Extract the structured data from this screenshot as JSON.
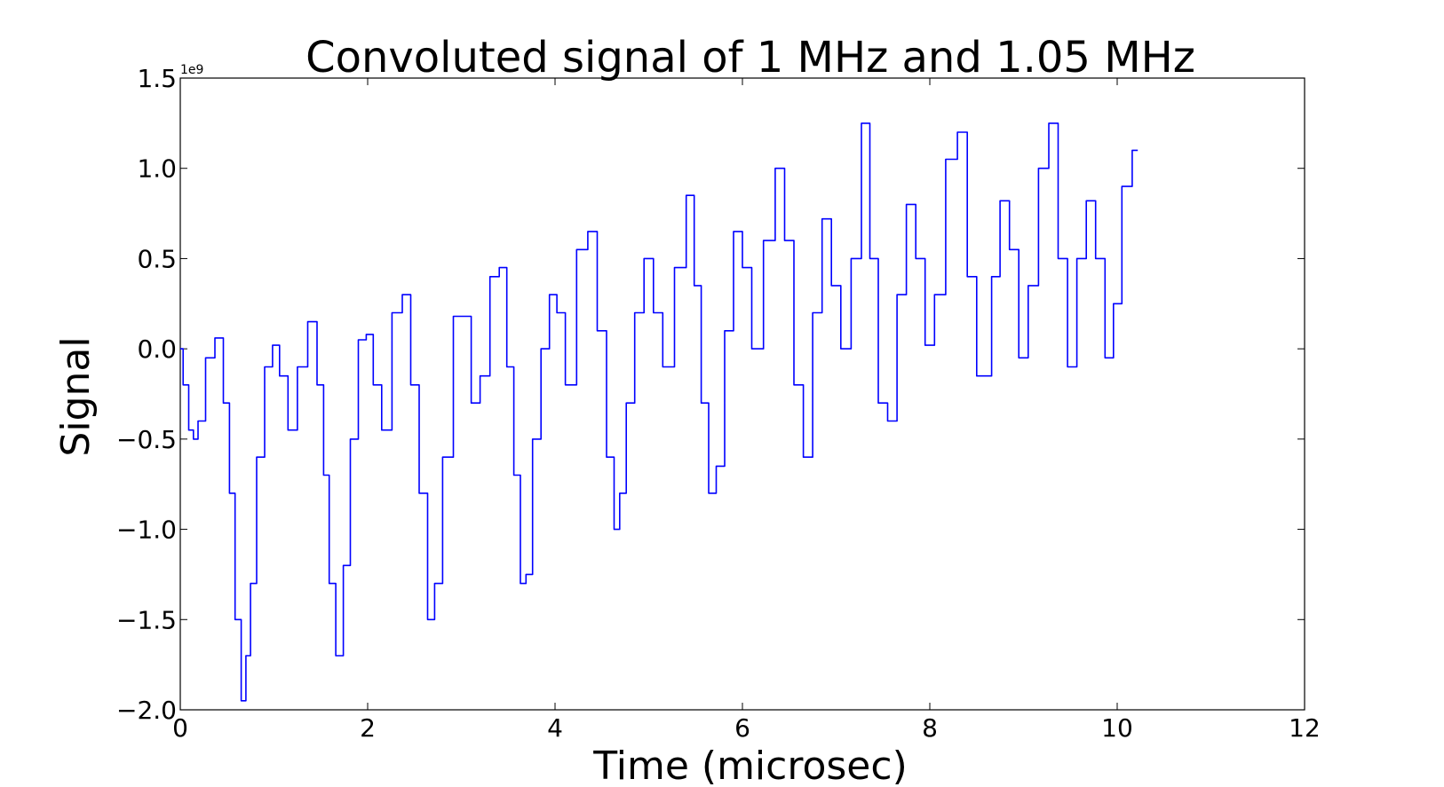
{
  "chart_data": {
    "type": "line",
    "title": "Convoluted signal of 1 MHz and 1.05 MHz",
    "xlabel": "Time (microsec)",
    "ylabel": "Signal",
    "y_offset_label": "1e9",
    "xlim": [
      0,
      12
    ],
    "ylim": [
      -2.0,
      1.5
    ],
    "x_ticks": [
      0,
      2,
      4,
      6,
      8,
      10,
      12
    ],
    "x_tick_labels": [
      "0",
      "2",
      "4",
      "6",
      "8",
      "10",
      "12"
    ],
    "y_ticks": [
      -2.0,
      -1.5,
      -1.0,
      -0.5,
      0.0,
      0.5,
      1.0,
      1.5
    ],
    "y_tick_labels": [
      "−2.0",
      "−1.5",
      "−1.0",
      "−0.5",
      "0.0",
      "0.5",
      "1.0",
      "1.5"
    ],
    "grid": false,
    "line_color": "#0000ff",
    "series": [
      {
        "x": [
          0,
          0.06,
          0.12,
          0.16,
          0.22,
          0.32,
          0.42,
          0.5,
          0.55,
          0.62,
          0.68,
          0.72,
          0.78,
          0.85,
          0.95,
          1.02,
          1.1,
          1.2,
          1.3,
          1.42,
          1.5,
          1.56,
          1.62,
          1.7,
          1.78,
          1.85,
          1.95,
          2.02,
          2.1,
          2.2,
          2.32,
          2.42,
          2.5,
          2.6,
          2.68,
          2.75,
          2.85,
          2.98,
          3.06,
          3.15,
          3.25,
          3.36,
          3.45,
          3.52,
          3.6,
          3.66,
          3.72,
          3.8,
          3.9,
          3.98,
          4.06,
          4.16,
          4.3,
          4.4,
          4.5,
          4.6,
          4.66,
          4.72,
          4.8,
          4.9,
          5.0,
          5.1,
          5.2,
          5.35,
          5.45,
          5.52,
          5.6,
          5.68,
          5.76,
          5.86,
          5.95,
          6.05,
          6.15,
          6.3,
          6.4,
          6.5,
          6.6,
          6.7,
          6.8,
          6.9,
          7.0,
          7.1,
          7.22,
          7.32,
          7.4,
          7.5,
          7.6,
          7.7,
          7.8,
          7.9,
          8.0,
          8.1,
          8.24,
          8.35,
          8.45,
          8.55,
          8.62,
          8.7,
          8.8,
          8.9,
          9.0,
          9.1,
          9.22,
          9.32,
          9.42,
          9.52,
          9.62,
          9.72,
          9.82,
          9.92,
          10.0,
          10.1,
          10.22
        ],
        "y": [
          0.0,
          -0.2,
          -0.45,
          -0.5,
          -0.4,
          -0.05,
          0.06,
          -0.3,
          -0.8,
          -1.5,
          -1.95,
          -1.7,
          -1.3,
          -0.6,
          -0.1,
          0.02,
          -0.15,
          -0.45,
          -0.1,
          0.15,
          -0.2,
          -0.7,
          -1.3,
          -1.7,
          -1.2,
          -0.5,
          0.05,
          0.08,
          -0.2,
          -0.45,
          0.2,
          0.3,
          -0.2,
          -0.8,
          -1.5,
          -1.3,
          -0.6,
          0.18,
          0.18,
          -0.3,
          -0.15,
          0.4,
          0.45,
          -0.1,
          -0.7,
          -1.3,
          -1.25,
          -0.5,
          0.0,
          0.3,
          0.2,
          -0.2,
          0.55,
          0.65,
          0.1,
          -0.6,
          -1.0,
          -0.8,
          -0.3,
          0.2,
          0.5,
          0.2,
          -0.1,
          0.45,
          0.85,
          0.35,
          -0.3,
          -0.8,
          -0.65,
          0.1,
          0.65,
          0.45,
          0.0,
          0.6,
          1.0,
          0.6,
          -0.2,
          -0.6,
          0.2,
          0.72,
          0.35,
          0.0,
          0.5,
          1.25,
          0.5,
          -0.3,
          -0.4,
          0.3,
          0.8,
          0.5,
          0.02,
          0.3,
          1.05,
          1.2,
          0.4,
          -0.15,
          -0.15,
          0.4,
          0.82,
          0.55,
          -0.05,
          0.35,
          1.0,
          1.25,
          0.5,
          -0.1,
          0.5,
          0.82,
          0.5,
          -0.05,
          0.25,
          0.9,
          1.1
        ]
      }
    ]
  }
}
